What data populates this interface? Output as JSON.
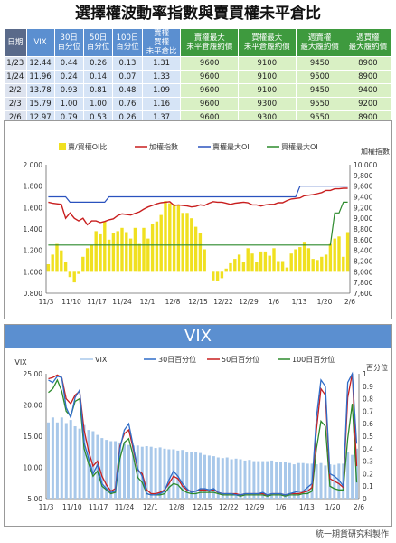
{
  "title": "選擇權波動率指數與賣買權未平倉比",
  "table": {
    "headers": [
      "日期",
      "VIX",
      "30日\n百分位",
      "50日\n百分位",
      "100日\n百分位",
      "賣權\n買權\n未平倉比",
      "賣權最大\n未平倉履約價",
      "買權最大\n未平倉履約價",
      "週賣權\n最大履約價",
      "週買權\n最大履約價"
    ],
    "rows": [
      [
        "1/23",
        "12.44",
        "0.44",
        "0.26",
        "0.13",
        "1.31",
        "9600",
        "9100",
        "9450",
        "8900"
      ],
      [
        "1/24",
        "11.96",
        "0.24",
        "0.14",
        "0.07",
        "1.33",
        "9600",
        "9100",
        "9500",
        "8900"
      ],
      [
        "2/2",
        "13.78",
        "0.93",
        "0.81",
        "0.48",
        "1.09",
        "9600",
        "9100",
        "9450",
        "9400"
      ],
      [
        "2/3",
        "15.79",
        "1.00",
        "1.00",
        "0.76",
        "1.16",
        "9600",
        "9300",
        "9550",
        "9200"
      ],
      [
        "2/6",
        "12.97",
        "0.79",
        "0.53",
        "0.26",
        "1.37",
        "9600",
        "9300",
        "9550",
        "8900"
      ]
    ]
  },
  "chart_data": [
    {
      "type": "bar",
      "legend": [
        "賣/買權OI比",
        "加權指數",
        "賣權最大OI",
        "買權最大OI"
      ],
      "ylabel_right": "加權指數",
      "x_tick_labels": [
        "11/3",
        "11/10",
        "11/17",
        "11/24",
        "12/1",
        "12/8",
        "12/15",
        "12/22",
        "12/29",
        "1/6",
        "1/13",
        "1/20",
        "2/6"
      ],
      "y_left_ticks": [
        "0.800",
        "1.000",
        "1.200",
        "1.400",
        "1.600",
        "1.800",
        "2.000"
      ],
      "y_right_ticks": [
        "7,600",
        "7,800",
        "8,000",
        "8,200",
        "8,400",
        "8,600",
        "8,800",
        "9,000",
        "9,200",
        "9,400",
        "9,600",
        "9,800",
        "10,000"
      ],
      "ylim_left": [
        0.8,
        2.0
      ],
      "ylim_right": [
        7600,
        10000
      ],
      "bar_base": 1.0,
      "oi_ratio": [
        1.07,
        1.16,
        1.26,
        1.2,
        1.09,
        0.95,
        0.9,
        0.98,
        1.14,
        1.22,
        1.25,
        1.38,
        1.35,
        1.47,
        1.3,
        1.36,
        1.38,
        1.41,
        1.37,
        1.31,
        1.41,
        1.26,
        1.41,
        1.31,
        1.45,
        1.47,
        1.53,
        1.66,
        1.64,
        1.63,
        1.62,
        1.55,
        1.55,
        1.5,
        1.42,
        1.36,
        1.21,
        1.0,
        0.92,
        0.91,
        0.94,
        1.03,
        1.08,
        1.12,
        1.16,
        1.09,
        1.22,
        1.17,
        1.09,
        1.19,
        1.19,
        1.15,
        1.22,
        1.1,
        1.1,
        1.04,
        1.17,
        1.21,
        1.23,
        1.28,
        1.22,
        1.12,
        1.11,
        1.14,
        1.16,
        1.26,
        1.31,
        1.33,
        1.14,
        1.37
      ],
      "taiex": [
        9300,
        9280,
        9270,
        9260,
        9000,
        9100,
        9000,
        8950,
        9000,
        8880,
        8950,
        8950,
        8920,
        8940,
        8970,
        8990,
        9050,
        9080,
        9070,
        9060,
        9090,
        9120,
        9170,
        9210,
        9240,
        9270,
        9290,
        9300,
        9310,
        9240,
        9250,
        9240,
        9230,
        9210,
        9220,
        9250,
        9240,
        9280,
        9310,
        9300,
        9300,
        9280,
        9260,
        9280,
        9290,
        9300,
        9290,
        9250,
        9250,
        9230,
        9250,
        9260,
        9260,
        9290,
        9290,
        9330,
        9360,
        9370,
        9380,
        9420,
        9430,
        9440,
        9460,
        9480,
        9520,
        9520,
        9550,
        9550,
        9560,
        9560
      ],
      "max_put_oi": [
        9400,
        9400,
        9400,
        9400,
        9400,
        9300,
        9300,
        9300,
        9300,
        9300,
        9300,
        9300,
        9300,
        9300,
        9400,
        9400,
        9400,
        9400,
        9400,
        9400,
        9400,
        9400,
        9400,
        9400,
        9400,
        9400,
        9400,
        9400,
        9400,
        9400,
        9400,
        9400,
        9400,
        9400,
        9400,
        9400,
        9400,
        9400,
        9400,
        9400,
        9400,
        9400,
        9400,
        9400,
        9400,
        9400,
        9400,
        9400,
        9400,
        9400,
        9400,
        9400,
        9400,
        9400,
        9400,
        9400,
        9400,
        9400,
        9600,
        9600,
        9600,
        9600,
        9600,
        9600,
        9600,
        9600,
        9600,
        9600,
        9600,
        9600
      ],
      "max_call_oi": [
        8500,
        8500,
        8500,
        8500,
        8500,
        8500,
        8500,
        8500,
        8500,
        8500,
        8500,
        8500,
        8500,
        8500,
        8500,
        8500,
        8500,
        8500,
        8500,
        8500,
        8500,
        8500,
        8500,
        8500,
        8500,
        8500,
        8500,
        8500,
        8500,
        8500,
        8500,
        8500,
        8500,
        8500,
        8500,
        8500,
        8500,
        8500,
        8500,
        8500,
        8500,
        8500,
        8500,
        8500,
        8500,
        8500,
        8500,
        8500,
        8500,
        8500,
        8500,
        8500,
        8500,
        8500,
        8500,
        8500,
        8500,
        8500,
        8500,
        8500,
        8500,
        8500,
        8500,
        8500,
        8500,
        8500,
        9100,
        9100,
        9300,
        9300
      ]
    },
    {
      "type": "line",
      "title": "VIX",
      "legend": [
        "VIX",
        "30日百分位",
        "50日百分位",
        "100日百分位"
      ],
      "ylabel_left": "VIX",
      "ylabel_right": "百分位",
      "x_tick_labels": [
        "11/3",
        "11/10",
        "11/17",
        "11/24",
        "12/1",
        "12/8",
        "12/15",
        "12/22",
        "12/29",
        "1/6",
        "1/13",
        "1/20",
        "2/6"
      ],
      "y_left_ticks": [
        "5.00",
        "10.00",
        "15.00",
        "20.00",
        "25.00"
      ],
      "y_right_ticks": [
        "0",
        "0.1",
        "0.2",
        "0.3",
        "0.4",
        "0.5",
        "0.6",
        "0.7",
        "0.8",
        "0.9",
        "1"
      ],
      "ylim_left": [
        5,
        25
      ],
      "ylim_right": [
        0,
        1
      ],
      "vix": [
        17.2,
        18.0,
        17.2,
        18.0,
        17.1,
        17.6,
        16.6,
        16.2,
        16.8,
        16.0,
        15.8,
        15.2,
        14.7,
        14.4,
        14.2,
        14.2,
        14.0,
        13.8,
        13.6,
        13.5,
        13.5,
        13.3,
        13.4,
        13.3,
        13.1,
        13.2,
        13.0,
        12.9,
        12.9,
        12.7,
        12.8,
        12.5,
        12.4,
        12.5,
        12.3,
        12.0,
        11.9,
        11.8,
        11.6,
        11.5,
        11.6,
        11.3,
        11.4,
        11.3,
        11.1,
        11.2,
        11.0,
        11.0,
        11.0,
        11.0,
        11.1,
        10.9,
        10.8,
        10.8,
        10.7,
        10.5,
        10.7,
        10.7,
        10.6,
        10.6,
        10.5,
        10.7,
        10.3,
        10.5,
        10.4,
        10.6,
        10.6,
        12.4,
        12.0,
        13.0
      ],
      "pct30": [
        0.95,
        0.93,
        0.98,
        0.97,
        0.73,
        0.65,
        0.81,
        0.87,
        0.45,
        0.32,
        0.2,
        0.27,
        0.12,
        0.08,
        0.05,
        0.06,
        0.4,
        0.55,
        0.6,
        0.42,
        0.24,
        0.18,
        0.04,
        0.03,
        0.03,
        0.04,
        0.06,
        0.15,
        0.22,
        0.18,
        0.12,
        0.08,
        0.05,
        0.06,
        0.08,
        0.08,
        0.07,
        0.08,
        0.05,
        0.04,
        0.04,
        0.04,
        0.03,
        0.03,
        0.04,
        0.04,
        0.04,
        0.04,
        0.05,
        0.03,
        0.04,
        0.04,
        0.04,
        0.03,
        0.04,
        0.05,
        0.06,
        0.06,
        0.09,
        0.12,
        0.65,
        0.95,
        0.9,
        0.2,
        0.18,
        0.15,
        0.1,
        0.93,
        1.0,
        0.44
      ],
      "pct50": [
        0.96,
        0.97,
        0.99,
        0.97,
        0.8,
        0.76,
        0.83,
        0.86,
        0.55,
        0.38,
        0.26,
        0.3,
        0.18,
        0.11,
        0.06,
        0.08,
        0.42,
        0.52,
        0.55,
        0.4,
        0.23,
        0.2,
        0.07,
        0.04,
        0.04,
        0.05,
        0.07,
        0.12,
        0.18,
        0.16,
        0.1,
        0.07,
        0.06,
        0.06,
        0.07,
        0.07,
        0.06,
        0.07,
        0.05,
        0.04,
        0.04,
        0.04,
        0.04,
        0.03,
        0.04,
        0.04,
        0.04,
        0.04,
        0.04,
        0.03,
        0.04,
        0.04,
        0.04,
        0.03,
        0.04,
        0.04,
        0.04,
        0.05,
        0.06,
        0.09,
        0.55,
        0.88,
        0.83,
        0.16,
        0.14,
        0.12,
        0.09,
        0.81,
        1.0,
        0.26
      ],
      "pct100": [
        0.85,
        0.88,
        0.95,
        0.86,
        0.7,
        0.66,
        0.78,
        0.8,
        0.4,
        0.28,
        0.18,
        0.22,
        0.1,
        0.07,
        0.04,
        0.05,
        0.32,
        0.45,
        0.48,
        0.34,
        0.17,
        0.13,
        0.04,
        0.03,
        0.03,
        0.03,
        0.04,
        0.09,
        0.12,
        0.11,
        0.07,
        0.05,
        0.04,
        0.04,
        0.05,
        0.05,
        0.05,
        0.05,
        0.04,
        0.03,
        0.03,
        0.03,
        0.03,
        0.02,
        0.03,
        0.03,
        0.03,
        0.03,
        0.03,
        0.02,
        0.03,
        0.03,
        0.03,
        0.02,
        0.03,
        0.03,
        0.03,
        0.04,
        0.04,
        0.06,
        0.4,
        0.62,
        0.58,
        0.1,
        0.08,
        0.07,
        0.07,
        0.48,
        0.76,
        0.13
      ]
    }
  ],
  "footer": "統一期貨研究科製作",
  "colors": {
    "bar_yellow": "#f0e020",
    "taiex_red": "#c81e1e",
    "put_blue": "#2a52be",
    "call_green": "#2c8a2c",
    "vix_bar": "#a8c8ea",
    "pct30_blue": "#2f6cc8",
    "pct50_red": "#c81e1e",
    "pct100_green": "#2c8a2c"
  }
}
